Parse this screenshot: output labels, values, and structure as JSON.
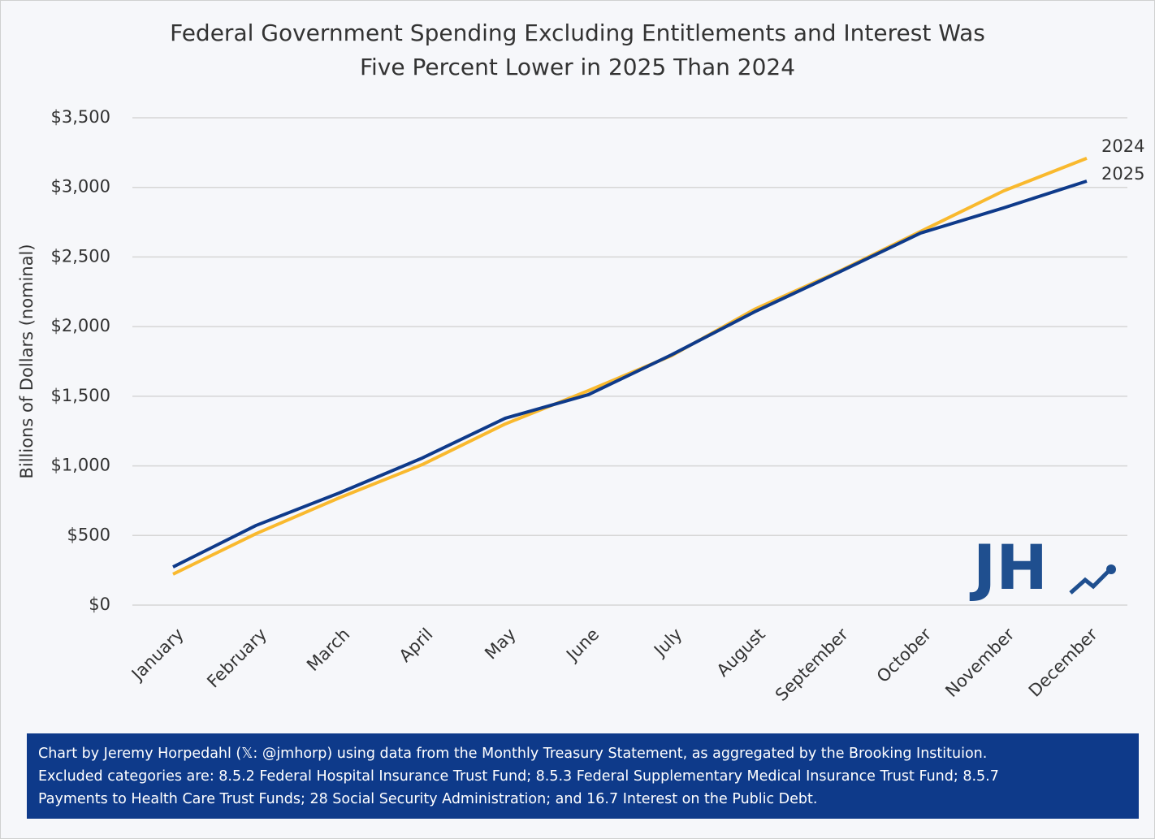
{
  "chart_data": {
    "type": "line",
    "title": [
      "Federal Government Spending Excluding Entitlements and Interest Was",
      "Five Percent Lower in 2025 Than 2024"
    ],
    "y_label": "Billions of Dollars (nominal)",
    "categories": [
      "January",
      "February",
      "March",
      "April",
      "May",
      "June",
      "July",
      "August",
      "September",
      "October",
      "November",
      "December"
    ],
    "series": [
      {
        "name": "2024",
        "color": "#f9b92e",
        "values": [
          222,
          513,
          770,
          1009,
          1301,
          1540,
          1791,
          2124,
          2392,
          2684,
          2975,
          3209
        ]
      },
      {
        "name": "2025",
        "color": "#0e3a8a",
        "values": [
          274,
          572,
          805,
          1056,
          1342,
          1511,
          1797,
          2106,
          2386,
          2672,
          2853,
          3045
        ]
      }
    ],
    "ylim": [
      0,
      3500
    ],
    "yticks": [
      {
        "value": 0,
        "label": "$0"
      },
      {
        "value": 500,
        "label": "$500"
      },
      {
        "value": 1000,
        "label": "$1,000"
      },
      {
        "value": 1500,
        "label": "$1,500"
      },
      {
        "value": 2000,
        "label": "$2,000"
      },
      {
        "value": 2500,
        "label": "$2,500"
      },
      {
        "value": 3000,
        "label": "$3,000"
      },
      {
        "value": 3500,
        "label": "$3,500"
      }
    ],
    "grid": true,
    "logo": "JH",
    "note": [
      "Chart by Jeremy Horpedahl (𝕏: @jmhorp) using data from the Monthly Treasury Statement, as aggregated by the Brooking Instituion.",
      "Excluded categories are: 8.5.2 Federal Hospital Insurance Trust Fund; 8.5.3 Federal Supplementary Medical Insurance Trust Fund; 8.5.7",
      "Payments to Health Care Trust Funds; 28 Social Security Administration; and 16.7 Interest on the Public Debt."
    ]
  }
}
